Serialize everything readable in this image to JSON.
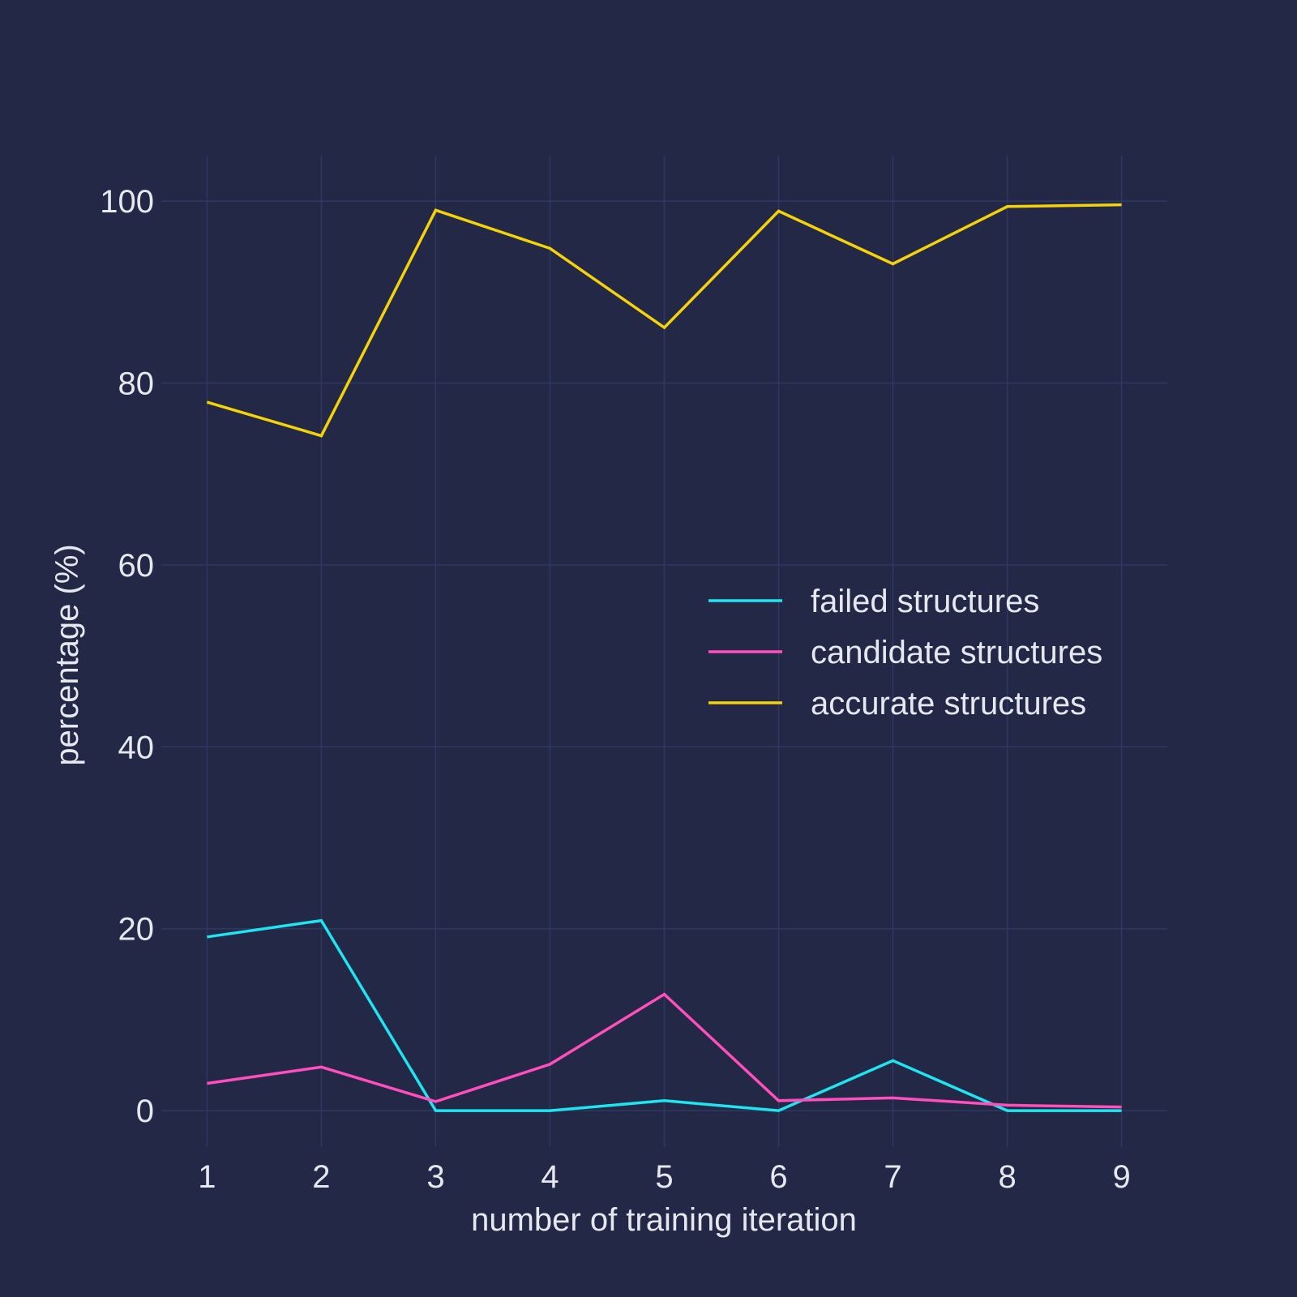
{
  "chart_data": {
    "type": "line",
    "title": "",
    "xlabel": "number of training iteration",
    "ylabel": "percentage (%)",
    "x": [
      1,
      2,
      3,
      4,
      5,
      6,
      7,
      8,
      9
    ],
    "x_ticks": [
      "1",
      "2",
      "3",
      "4",
      "5",
      "6",
      "7",
      "8",
      "9"
    ],
    "y_ticks": [
      "0",
      "20",
      "40",
      "60",
      "80",
      "100"
    ],
    "xlim": [
      0.6,
      9.4
    ],
    "ylim": [
      -4,
      105
    ],
    "grid": true,
    "legend_position": "right-middle",
    "background_color": "#222845",
    "series": [
      {
        "name": "failed structures",
        "color": "#1fe5f0",
        "values": [
          19.1,
          20.9,
          0.0,
          0.0,
          1.1,
          0.0,
          5.5,
          0.0,
          0.0
        ]
      },
      {
        "name": "candidate structures",
        "color": "#ff4fbd",
        "values": [
          3.0,
          4.8,
          1.0,
          5.1,
          12.8,
          1.1,
          1.4,
          0.6,
          0.4
        ]
      },
      {
        "name": "accurate structures",
        "color": "#f5d20a",
        "values": [
          77.9,
          74.2,
          99.0,
          94.8,
          86.1,
          98.9,
          93.1,
          99.4,
          99.6
        ]
      }
    ]
  }
}
